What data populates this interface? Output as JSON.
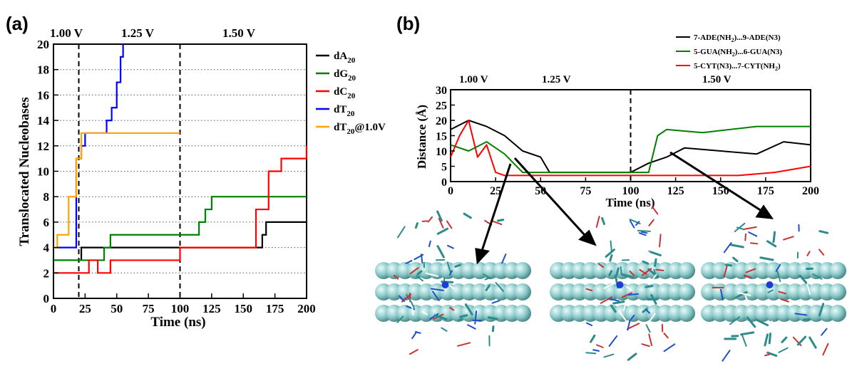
{
  "panel_a": {
    "label": "(a)",
    "voltages": [
      "1.00 V",
      "1.25 V",
      "1.50 V"
    ],
    "legend_suffix": "@1.0V",
    "chart_data": {
      "type": "line",
      "xlabel": "Time (ns)",
      "ylabel": "Translocated Nucleobases",
      "xlim": [
        0,
        200
      ],
      "ylim": [
        0,
        20
      ],
      "xticks": [
        0,
        25,
        50,
        75,
        100,
        125,
        150,
        175,
        200
      ],
      "yticks": [
        0,
        2,
        4,
        6,
        8,
        10,
        12,
        14,
        16,
        18,
        20
      ],
      "grid": "horizontal dotted",
      "legend": "right",
      "vlines": [
        20,
        100
      ],
      "series": [
        {
          "base": "dA",
          "sub": "20",
          "color": "#000000",
          "x": [
            0,
            20,
            22,
            165,
            168,
            200
          ],
          "y": [
            3,
            3,
            4,
            5,
            6,
            6
          ]
        },
        {
          "base": "dG",
          "sub": "20",
          "color": "#008000",
          "x": [
            0,
            40,
            45,
            110,
            115,
            120,
            125,
            200
          ],
          "y": [
            3,
            4,
            5,
            5,
            6,
            7,
            8,
            8
          ]
        },
        {
          "base": "dC",
          "sub": "20",
          "color": "#ff0000",
          "x": [
            0,
            28,
            35,
            45,
            100,
            155,
            160,
            170,
            180,
            200
          ],
          "y": [
            2,
            3,
            2,
            3,
            4,
            4,
            7,
            10,
            11,
            12
          ]
        },
        {
          "base": "dT",
          "sub": "20",
          "color": "#0000ff",
          "x": [
            0,
            18,
            22,
            25,
            35,
            42,
            46,
            50,
            53,
            55
          ],
          "y": [
            4,
            11,
            12,
            13,
            13,
            14,
            15,
            17,
            19,
            20
          ]
        },
        {
          "base": "dT",
          "sub": "20",
          "suffix": "@1.0V",
          "color": "#ffa500",
          "x": [
            0,
            3,
            8,
            12,
            18,
            22,
            25,
            100
          ],
          "y": [
            4,
            5,
            5,
            8,
            11,
            13,
            13,
            13
          ]
        }
      ]
    }
  },
  "panel_b": {
    "label": "(b)",
    "voltages": [
      "1.00 V",
      "1.25 V",
      "1.50 V"
    ],
    "chart_data": {
      "type": "line",
      "xlabel": "Time (ns)",
      "ylabel": "Distance (Å)",
      "xlim": [
        0,
        200
      ],
      "ylim": [
        0,
        30
      ],
      "xticks": [
        0,
        25,
        50,
        75,
        100,
        125,
        150,
        175,
        200
      ],
      "yticks": [
        0,
        5,
        10,
        15,
        20,
        25,
        30
      ],
      "legend": "top-right",
      "vlines": [
        100
      ],
      "series": [
        {
          "parts": [
            "7-ADE(NH",
            "2",
            ")...9-ADE(N3)"
          ],
          "color": "#000000",
          "x": [
            0,
            10,
            20,
            30,
            40,
            50,
            55,
            100,
            110,
            120,
            130,
            150,
            170,
            185,
            200
          ],
          "y": [
            17,
            20,
            18,
            15,
            10,
            8,
            3,
            3,
            6,
            8,
            11,
            10,
            9,
            13,
            12
          ]
        },
        {
          "parts": [
            "5-GUA(NH",
            "2",
            ")...6-GUA(N3)"
          ],
          "color": "#008000",
          "x": [
            0,
            10,
            20,
            30,
            40,
            100,
            110,
            115,
            120,
            140,
            170,
            200
          ],
          "y": [
            12,
            10,
            13,
            9,
            3,
            3,
            3,
            15,
            17,
            16,
            18,
            18
          ]
        },
        {
          "parts": [
            "5-CYT(N3)...7-CYT(NH",
            "2",
            ")"
          ],
          "color": "#ff0000",
          "x": [
            0,
            5,
            10,
            15,
            20,
            25,
            30,
            160,
            180,
            200
          ],
          "y": [
            8,
            15,
            20,
            8,
            12,
            3,
            2,
            2,
            3,
            5
          ]
        }
      ]
    }
  }
}
